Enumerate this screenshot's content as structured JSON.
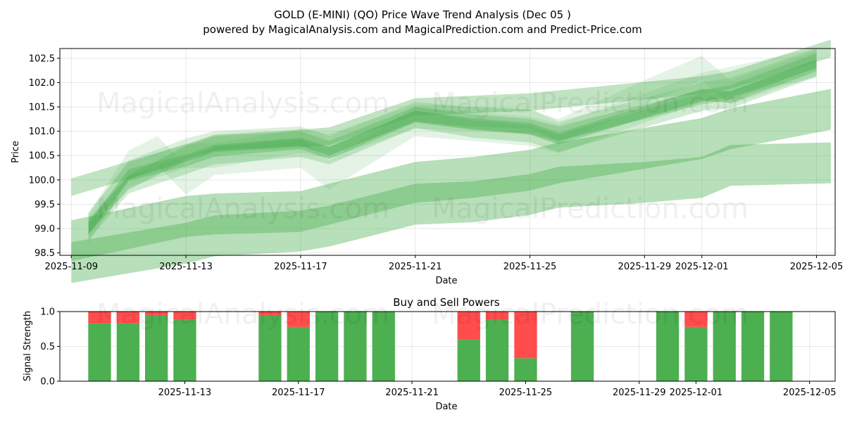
{
  "chart_data": [
    {
      "type": "area",
      "title_line1": "GOLD (E-MINI) (QO) Price Wave Trend Analysis (Dec 05 )",
      "title_line2": "powered by MagicalAnalysis.com and MagicalPrediction.com and Predict-Price.com",
      "xlabel": "Date",
      "ylabel": "Price",
      "ylim": [
        98.45,
        102.7
      ],
      "xlim_days": [
        -0.4,
        26.65
      ],
      "start_date": "2025-11-09",
      "x_tick_labels": [
        {
          "day": 0,
          "label": "2025-11-09"
        },
        {
          "day": 4,
          "label": "2025-11-13"
        },
        {
          "day": 8,
          "label": "2025-11-17"
        },
        {
          "day": 12,
          "label": "2025-11-21"
        },
        {
          "day": 16,
          "label": "2025-11-25"
        },
        {
          "day": 20,
          "label": "2025-11-29"
        },
        {
          "day": 22,
          "label": "2025-12-01"
        },
        {
          "day": 26,
          "label": "2025-12-05"
        }
      ],
      "y_ticks": [
        98.5,
        99.0,
        99.5,
        100.0,
        100.5,
        101.0,
        101.5,
        102.0,
        102.5
      ],
      "y_tick_labels": [
        "98.5",
        "99.0",
        "99.5",
        "100.0",
        "100.5",
        "101.0",
        "101.5",
        "102.0",
        "102.5"
      ],
      "grid": true,
      "band_color": "#4caf50",
      "series": [
        {
          "name": "wave-main-1",
          "x": [
            0.6,
            2,
            4,
            5,
            8,
            9,
            12,
            14,
            16,
            17,
            22,
            23,
            26
          ],
          "center": [
            99.0,
            100.1,
            100.4,
            100.6,
            100.75,
            100.55,
            101.3,
            101.15,
            101.05,
            100.85,
            101.75,
            101.7,
            102.35
          ],
          "half_width": 0.12,
          "opacity": 0.35
        },
        {
          "name": "wave-main-2",
          "x": [
            0.6,
            2,
            4,
            5,
            8,
            9,
            12,
            14,
            16,
            17,
            22,
            23,
            26
          ],
          "center": [
            99.05,
            99.95,
            100.55,
            100.75,
            100.85,
            100.65,
            101.35,
            101.2,
            101.1,
            100.95,
            101.7,
            101.8,
            102.45
          ],
          "half_width": 0.15,
          "opacity": 0.3
        },
        {
          "name": "wave-main-3",
          "x": [
            0.6,
            2,
            4,
            5,
            8,
            9,
            12,
            14,
            16,
            17,
            22,
            23,
            26
          ],
          "center": [
            98.95,
            99.9,
            100.3,
            100.5,
            100.65,
            100.5,
            101.25,
            101.05,
            100.95,
            100.75,
            101.6,
            101.65,
            102.3
          ],
          "half_width": 0.18,
          "opacity": 0.25
        },
        {
          "name": "wave-main-4",
          "x": [
            0.6,
            2,
            4,
            5,
            8,
            9,
            12,
            14,
            16,
            17,
            22,
            23,
            26
          ],
          "center": [
            99.1,
            100.2,
            100.65,
            100.8,
            100.9,
            100.7,
            101.4,
            101.3,
            101.25,
            101.0,
            101.8,
            101.9,
            102.5
          ],
          "half_width": 0.2,
          "opacity": 0.2
        },
        {
          "name": "wave-spike",
          "x": [
            0.6,
            2,
            3,
            4,
            5,
            8,
            9,
            12,
            16,
            17,
            22,
            26
          ],
          "center": [
            99.0,
            100.3,
            100.6,
            100.0,
            100.4,
            100.55,
            100.1,
            101.2,
            101.0,
            100.85,
            101.9,
            102.4
          ],
          "half_width": 0.3,
          "opacity": 0.15
        },
        {
          "name": "wave-peak",
          "x": [
            0.6,
            2,
            4,
            5,
            8,
            9,
            12,
            16,
            17,
            20,
            22,
            23,
            26
          ],
          "center": [
            99.1,
            100.1,
            100.5,
            100.5,
            100.8,
            100.7,
            101.3,
            101.2,
            101.0,
            101.8,
            102.3,
            101.8,
            102.4
          ],
          "half_width": 0.25,
          "opacity": 0.15
        },
        {
          "name": "channel-upper",
          "x": [
            0,
            4,
            5,
            8,
            9,
            12,
            16,
            22,
            23,
            26.5
          ],
          "center": [
            99.85,
            100.55,
            100.75,
            100.85,
            100.9,
            101.5,
            101.6,
            101.95,
            102.05,
            102.7
          ],
          "half_width": 0.18,
          "opacity": 0.35
        },
        {
          "name": "channel-mid",
          "x": [
            0,
            4,
            5,
            8,
            9,
            12,
            14,
            16,
            17,
            20,
            22,
            23,
            26.5
          ],
          "center": [
            98.75,
            99.25,
            99.3,
            99.35,
            99.5,
            99.95,
            100.05,
            100.2,
            100.35,
            100.65,
            100.85,
            101.05,
            101.45
          ],
          "half_width": 0.42,
          "opacity": 0.4
        },
        {
          "name": "channel-lower",
          "x": [
            0,
            4,
            5,
            8,
            9,
            12,
            14,
            16,
            17,
            20,
            22,
            23,
            26.5
          ],
          "center": [
            98.3,
            98.7,
            98.85,
            98.95,
            99.05,
            99.5,
            99.55,
            99.7,
            99.85,
            99.95,
            100.05,
            100.3,
            100.35
          ],
          "half_width": 0.42,
          "opacity": 0.4
        }
      ]
    },
    {
      "type": "bar",
      "title": "Buy and Sell Powers",
      "xlabel": "Date",
      "ylabel": "Signal Strength",
      "ylim": [
        0,
        1
      ],
      "xlim_days": [
        -0.4,
        26.9
      ],
      "y_ticks": [
        0.0,
        0.5,
        1.0
      ],
      "y_tick_labels": [
        "0.0",
        "0.5",
        "1.0"
      ],
      "x_tick_labels": [
        {
          "day": 4,
          "label": "2025-11-13"
        },
        {
          "day": 8,
          "label": "2025-11-17"
        },
        {
          "day": 12,
          "label": "2025-11-21"
        },
        {
          "day": 16,
          "label": "2025-11-25"
        },
        {
          "day": 20,
          "label": "2025-11-29"
        },
        {
          "day": 22,
          "label": "2025-12-01"
        },
        {
          "day": 26,
          "label": "2025-12-05"
        }
      ],
      "grid": true,
      "buy_color": "#4caf50",
      "sell_color": "#ff4c4c",
      "bars": [
        {
          "day": 1,
          "buy": 0.83
        },
        {
          "day": 2,
          "buy": 0.83
        },
        {
          "day": 3,
          "buy": 0.95
        },
        {
          "day": 4,
          "buy": 0.88
        },
        {
          "day": 7,
          "buy": 0.95
        },
        {
          "day": 8,
          "buy": 0.78
        },
        {
          "day": 9,
          "buy": 1.0
        },
        {
          "day": 10,
          "buy": 1.0
        },
        {
          "day": 11,
          "buy": 1.0
        },
        {
          "day": 14,
          "buy": 0.6
        },
        {
          "day": 15,
          "buy": 0.88
        },
        {
          "day": 16,
          "buy": 0.33
        },
        {
          "day": 18,
          "buy": 1.0
        },
        {
          "day": 21,
          "buy": 1.0
        },
        {
          "day": 22,
          "buy": 0.78
        },
        {
          "day": 23,
          "buy": 1.0
        },
        {
          "day": 24,
          "buy": 1.0
        },
        {
          "day": 25,
          "buy": 1.0
        }
      ]
    }
  ],
  "watermarks": {
    "left": "MagicalAnalysis.com",
    "right": "MagicalPrediction.com"
  }
}
